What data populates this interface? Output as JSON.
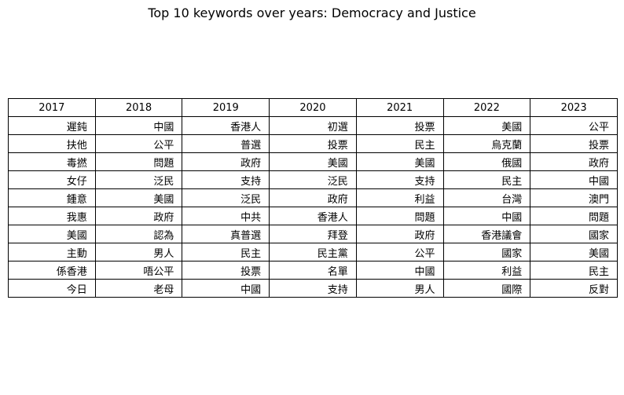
{
  "title": "Top 10 keywords over years: Democracy and Justice",
  "table": {
    "headers": [
      "2017",
      "2018",
      "2019",
      "2020",
      "2021",
      "2022",
      "2023"
    ],
    "rows": [
      [
        "遲鈍",
        "中國",
        "香港人",
        "初選",
        "投票",
        "美國",
        "公平"
      ],
      [
        "扶他",
        "公平",
        "普選",
        "投票",
        "民主",
        "烏克蘭",
        "投票"
      ],
      [
        "毒撚",
        "問題",
        "政府",
        "美國",
        "美國",
        "俄國",
        "政府"
      ],
      [
        "女仔",
        "泛民",
        "支持",
        "泛民",
        "支持",
        "民主",
        "中國"
      ],
      [
        "鍾意",
        "美國",
        "泛民",
        "政府",
        "利益",
        "台灣",
        "澳門"
      ],
      [
        "我惠",
        "政府",
        "中共",
        "香港人",
        "問題",
        "中國",
        "問題"
      ],
      [
        "美國",
        "認為",
        "真普選",
        "拜登",
        "政府",
        "香港議會",
        "國家"
      ],
      [
        "主動",
        "男人",
        "民主",
        "民主黨",
        "公平",
        "國家",
        "美國"
      ],
      [
        "係香港",
        "唔公平",
        "投票",
        "名單",
        "中國",
        "利益",
        "民主"
      ],
      [
        "今日",
        "老母",
        "中國",
        "支持",
        "男人",
        "國際",
        "反對"
      ]
    ]
  }
}
